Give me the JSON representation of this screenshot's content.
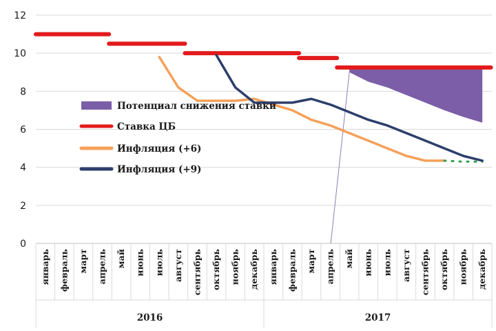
{
  "chart_data": {
    "type": "line",
    "title": "",
    "xlabel": "",
    "ylabel": "",
    "ylim": [
      0,
      12
    ],
    "yticks": [
      "0",
      "2",
      "4",
      "6",
      "8",
      "10",
      "12"
    ],
    "gridlines": true,
    "months": [
      "январь",
      "февраль",
      "март",
      "апрель",
      "май",
      "июнь",
      "июль",
      "август",
      "сентябрь",
      "октябрь",
      "ноябрь",
      "декабрь",
      "январь",
      "февраль",
      "март",
      "апрель",
      "май",
      "июнь",
      "июль",
      "август",
      "сентябрь",
      "октябрь",
      "ноябрь",
      "декабрь"
    ],
    "years": [
      "2016",
      "2017"
    ],
    "series": [
      {
        "name": "Ставка ЦБ",
        "color": "#e31a1c",
        "style": "step",
        "segments": [
          {
            "from": 0,
            "to": 3.85,
            "value": 11
          },
          {
            "from": 3.85,
            "to": 7.85,
            "value": 10.5
          },
          {
            "from": 7.85,
            "to": 13.85,
            "value": 10
          },
          {
            "from": 13.85,
            "to": 15.85,
            "value": 9.75
          },
          {
            "from": 15.85,
            "to": 23.95,
            "value": 9.25
          }
        ]
      },
      {
        "name": "Инфляция (+6)",
        "color": "#f5a05a",
        "points": [
          [
            6,
            9.8
          ],
          [
            7,
            8.2
          ],
          [
            8,
            7.5
          ],
          [
            9,
            7.5
          ],
          [
            10,
            7.5
          ],
          [
            11,
            7.6
          ],
          [
            12,
            7.3
          ],
          [
            13,
            7.0
          ],
          [
            14,
            6.5
          ],
          [
            15,
            6.2
          ],
          [
            16,
            5.8
          ],
          [
            17,
            5.4
          ],
          [
            18,
            5.0
          ],
          [
            19,
            4.6
          ],
          [
            20,
            4.35
          ],
          [
            21,
            4.35
          ]
        ],
        "forecast": [
          [
            21,
            4.35
          ],
          [
            22,
            4.3
          ],
          [
            23,
            4.3
          ]
        ],
        "forecast_color": "#2e9e4f"
      },
      {
        "name": "Инфляция (+9)",
        "color": "#2c3e6b",
        "points": [
          [
            9,
            9.9
          ],
          [
            10,
            8.2
          ],
          [
            11,
            7.4
          ],
          [
            12,
            7.4
          ],
          [
            13,
            7.4
          ],
          [
            14,
            7.6
          ],
          [
            15,
            7.3
          ],
          [
            16,
            6.9
          ],
          [
            17,
            6.5
          ],
          [
            18,
            6.2
          ],
          [
            19,
            5.8
          ],
          [
            20,
            5.4
          ],
          [
            21,
            5.0
          ],
          [
            22,
            4.6
          ],
          [
            23,
            4.35
          ]
        ]
      }
    ],
    "area": {
      "name": "Потенциал снижения ставки",
      "color": "#7b5ea7",
      "top": 9.25,
      "bottom": [
        [
          16,
          9.0
        ],
        [
          17,
          8.5
        ],
        [
          18,
          8.2
        ],
        [
          19,
          7.8
        ],
        [
          20,
          7.4
        ],
        [
          21,
          7.0
        ],
        [
          22,
          6.65
        ],
        [
          23,
          6.35
        ]
      ]
    },
    "legend": [
      {
        "label": "Потенциал снижения ставки",
        "kind": "area",
        "color": "#7b5ea7"
      },
      {
        "label": "Ставка ЦБ",
        "kind": "line",
        "color": "#e31a1c"
      },
      {
        "label": "Инфляция (+6)",
        "kind": "line",
        "color": "#f5a05a"
      },
      {
        "label": "Инфляция (+9)",
        "kind": "line",
        "color": "#2c3e6b"
      }
    ]
  }
}
